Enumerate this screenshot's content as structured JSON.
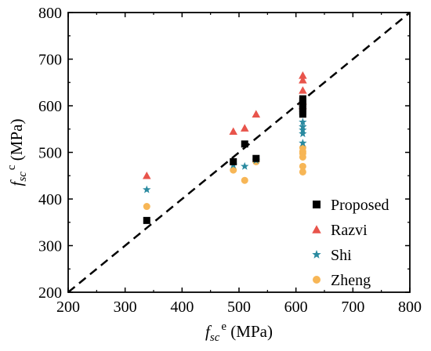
{
  "chart_data": {
    "type": "scatter",
    "xlabel": {
      "main": "f",
      "sub": "sc",
      "sup": "e",
      "unit": " (MPa)"
    },
    "ylabel": {
      "main": "f",
      "sub": "sc",
      "sup": "c",
      "unit": " (MPa)"
    },
    "xlim": [
      200,
      800
    ],
    "ylim": [
      200,
      800
    ],
    "xticks": [
      200,
      300,
      400,
      500,
      600,
      700,
      800
    ],
    "yticks": [
      200,
      300,
      400,
      500,
      600,
      700,
      800
    ],
    "reference_line": {
      "type": "y=x",
      "style": "dashed"
    },
    "legend_position": "bottom-right",
    "series": [
      {
        "name": "Proposed",
        "marker": "square",
        "color": "#000000",
        "points": [
          [
            338,
            354
          ],
          [
            490,
            480
          ],
          [
            510,
            518
          ],
          [
            530,
            487
          ],
          [
            612,
            588
          ],
          [
            612,
            595
          ],
          [
            612,
            600
          ],
          [
            612,
            604
          ],
          [
            612,
            610
          ],
          [
            612,
            615
          ],
          [
            612,
            582
          ]
        ]
      },
      {
        "name": "Razvi",
        "marker": "triangle",
        "color": "#e8544b",
        "points": [
          [
            338,
            450
          ],
          [
            490,
            545
          ],
          [
            510,
            552
          ],
          [
            530,
            582
          ],
          [
            612,
            665
          ],
          [
            612,
            655
          ],
          [
            612,
            633
          ],
          [
            612,
            610
          ],
          [
            612,
            600
          ]
        ]
      },
      {
        "name": "Shi",
        "marker": "star",
        "color": "#2a8aa0",
        "points": [
          [
            338,
            420
          ],
          [
            490,
            473
          ],
          [
            510,
            470
          ],
          [
            530,
            483
          ],
          [
            612,
            565
          ],
          [
            612,
            548
          ],
          [
            612,
            540
          ],
          [
            612,
            520
          ],
          [
            612,
            555
          ]
        ]
      },
      {
        "name": "Zheng",
        "marker": "circle",
        "color": "#f7b656",
        "points": [
          [
            338,
            384
          ],
          [
            490,
            462
          ],
          [
            510,
            440
          ],
          [
            530,
            480
          ],
          [
            612,
            510
          ],
          [
            612,
            498
          ],
          [
            612,
            490
          ],
          [
            612,
            470
          ],
          [
            612,
            458
          ],
          [
            612,
            502
          ]
        ]
      }
    ]
  }
}
